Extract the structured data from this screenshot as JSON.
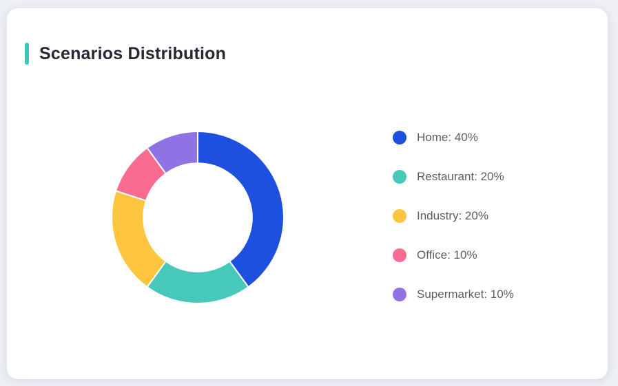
{
  "page": {
    "background_color": "#eef0f3",
    "card_background_color": "#ffffff"
  },
  "header": {
    "title": "Scenarios Distribution",
    "accent_color": "#3dc6b8",
    "title_color": "#242a33"
  },
  "chart_data": {
    "type": "pie",
    "subtype": "donut",
    "title": "Scenarios Distribution",
    "start_angle_deg": 0,
    "direction": "clockwise",
    "inner_radius_ratio": 0.63,
    "legend_position": "right",
    "slices": [
      {
        "label": "Home",
        "value": 40,
        "unit": "%",
        "color": "#1d50df"
      },
      {
        "label": "Restaurant",
        "value": 20,
        "unit": "%",
        "color": "#46c8bb"
      },
      {
        "label": "Industry",
        "value": 20,
        "unit": "%",
        "color": "#fec53e"
      },
      {
        "label": "Office",
        "value": 10,
        "unit": "%",
        "color": "#fa6b91"
      },
      {
        "label": "Supermarket",
        "value": 10,
        "unit": "%",
        "color": "#9072e4"
      }
    ],
    "legend_labels": [
      "Home: 40%",
      "Restaurant: 20%",
      "Industry: 20%",
      "Office: 10%",
      "Supermarket: 10%"
    ]
  }
}
